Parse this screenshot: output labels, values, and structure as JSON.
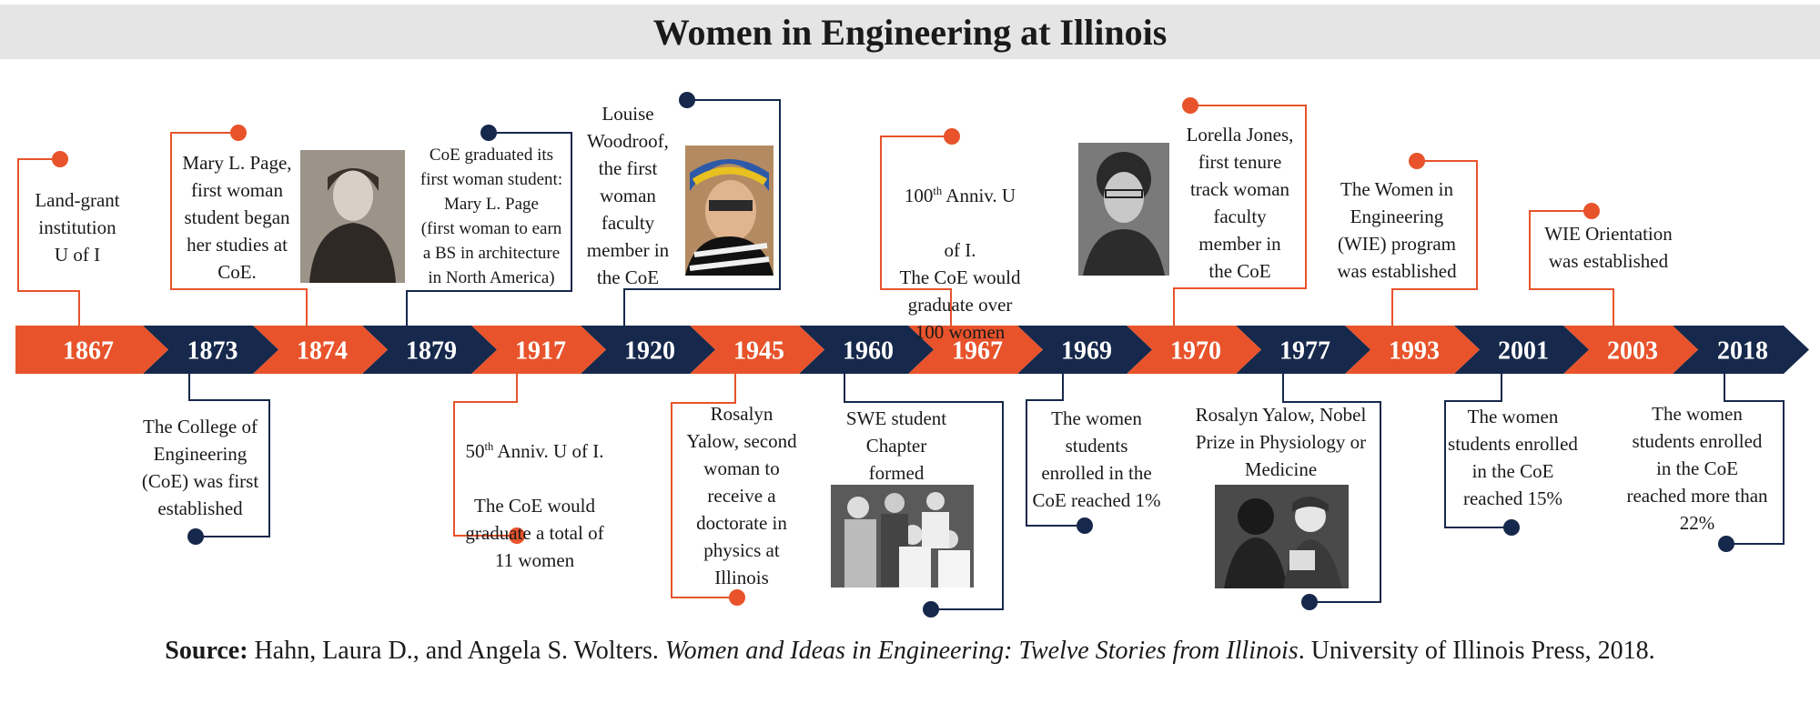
{
  "title": "Women in Engineering at Illinois",
  "colors": {
    "orange": "#e8532b",
    "navy": "#16284b"
  },
  "years": [
    "1867",
    "1873",
    "1874",
    "1879",
    "1917",
    "1920",
    "1945",
    "1960",
    "1967",
    "1969",
    "1970",
    "1977",
    "1993",
    "2001",
    "2003",
    "2018"
  ],
  "events": {
    "e1867": "Land-grant\ninstitution\nU of I",
    "e1873": "The College of\nEngineering\n(CoE)  was first\nestablished",
    "e1874": "Mary L. Page,\nfirst woman\nstudent began\nher studies at\nCoE.",
    "e1879": "CoE graduated its\nfirst woman student:\nMary L. Page\n(first woman to earn\na BS in architecture\nin North America)",
    "e1917_sup": "th",
    "e1917_a": "50",
    "e1917_b": " Anniv. U of I.",
    "e1917_c": "The CoE would\ngraduate a total of\n11 women",
    "e1920": "Louise\nWoodroof,\nthe first\nwoman\nfaculty\nmember in\nthe CoE",
    "e1945": "Rosalyn\nYalow, second\nwoman to\nreceive a\ndoctorate in\nphysics at\nIllinois",
    "e1960": "SWE student\nChapter\nformed",
    "e1967_a": "100",
    "e1967_sup": "th",
    "e1967_b": " Anniv. U",
    "e1967_c": "of I.\nThe CoE would\ngraduate over\n100 women",
    "e1969": "The women\nstudents\nenrolled in the\nCoE reached 1%",
    "e1970": "Lorella Jones,\nfirst tenure\ntrack woman\nfaculty\nmember in\nthe CoE",
    "e1977": "Rosalyn Yalow, Nobel\nPrize in Physiology or\nMedicine",
    "e1993": "The Women in\nEngineering\n(WIE) program\nwas established",
    "e2001": "The women\nstudents enrolled\nin the CoE\nreached 15%",
    "e2003": "WIE Orientation\nwas established",
    "e2018": "The women\nstudents enrolled\nin the CoE\nreached more than\n22%"
  },
  "photos": {
    "p1874": "portrait-photo",
    "p1920": "portrait-photo",
    "p1960": "group-photo",
    "p1970": "portrait-photo",
    "p1977": "award-photo"
  },
  "source": {
    "label": "Source:",
    "authors": " Hahn, Laura D., and Angela S. Wolters. ",
    "book": "Women and Ideas in Engineering: Twelve Stories from Illinois",
    "publisher": ". University of Illinois Press, 2018."
  }
}
